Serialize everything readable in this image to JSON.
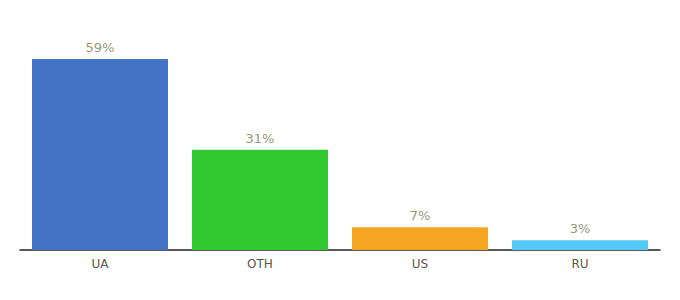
{
  "chart_data": {
    "type": "bar",
    "categories": [
      "UA",
      "OTH",
      "US",
      "RU"
    ],
    "values": [
      59,
      31,
      7,
      3
    ],
    "value_labels": [
      "59%",
      "31%",
      "7%",
      "3%"
    ],
    "data_labels": true,
    "colors": [
      "#4472c4",
      "#32c832",
      "#f5a623",
      "#56c8f5"
    ],
    "ylim": [
      0,
      68
    ],
    "grid": false,
    "tick_labels": "x"
  }
}
